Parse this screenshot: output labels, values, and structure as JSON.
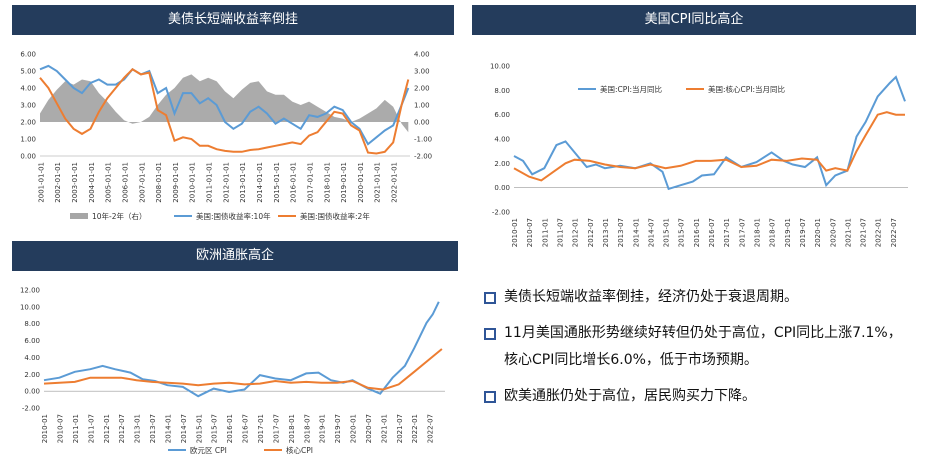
{
  "panels": {
    "treasury": {
      "title": "美债长短端收益率倒挂"
    },
    "us_cpi": {
      "title": "美国CPI同比高企"
    },
    "eu_cpi": {
      "title": "欧洲通胀高企"
    }
  },
  "bullets": [
    "美债长短端收益率倒挂，经济仍处于衰退周期。",
    "11月美国通胀形势继续好转但仍处于高位，CPI同比上涨7.1%，核心CPI同比增长6.0%，低于市场预期。",
    "欧美通胀仍处于高位，居民购买力下降。"
  ],
  "chart_data": [
    {
      "type": "line",
      "id": "treasury",
      "x_ticks": [
        "2001-01-01",
        "2002-01-01",
        "2003-01-01",
        "2004-01-01",
        "2005-01-01",
        "2006-01-01",
        "2007-01-01",
        "2008-01-01",
        "2009-01-01",
        "2010-01-01",
        "2011-01-01",
        "2012-01-01",
        "2013-01-01",
        "2014-01-01",
        "2015-01-01",
        "2016-01-01",
        "2017-01-01",
        "2018-01-01",
        "2019-01-01",
        "2020-01-01",
        "2021-01-01",
        "2022-01-01"
      ],
      "y_left_ticks": [
        "0.00",
        "1.00",
        "2.00",
        "3.00",
        "4.00",
        "5.00",
        "6.00"
      ],
      "y_right_ticks": [
        "-2.00",
        "-1.00",
        "0.00",
        "1.00",
        "2.00",
        "3.00",
        "4.00"
      ],
      "ylim_left": [
        0,
        6
      ],
      "ylim_right": [
        -2,
        4
      ],
      "x_range": [
        2001.0,
        2023.0
      ],
      "series": [
        {
          "name": "10年-2年（右）",
          "type": "area",
          "axis": "right",
          "color": "#a6a6a6",
          "x": [
            2001.0,
            2001.5,
            2002.0,
            2002.5,
            2003.0,
            2003.5,
            2004.0,
            2004.5,
            2005.0,
            2005.5,
            2006.0,
            2006.5,
            2007.0,
            2007.5,
            2008.0,
            2008.5,
            2009.0,
            2009.5,
            2010.0,
            2010.5,
            2011.0,
            2011.5,
            2012.0,
            2012.5,
            2013.0,
            2013.5,
            2014.0,
            2014.5,
            2015.0,
            2015.5,
            2016.0,
            2016.5,
            2017.0,
            2017.5,
            2018.0,
            2018.5,
            2019.0,
            2019.5,
            2020.0,
            2020.5,
            2021.0,
            2021.5,
            2022.0,
            2022.5,
            2022.9
          ],
          "values": [
            0.5,
            1.3,
            1.9,
            2.4,
            2.2,
            2.5,
            2.4,
            1.7,
            1.2,
            0.6,
            0.1,
            -0.1,
            0.0,
            0.3,
            1.0,
            1.6,
            2.0,
            2.6,
            2.8,
            2.4,
            2.6,
            2.4,
            1.8,
            1.4,
            1.9,
            2.3,
            2.4,
            1.8,
            1.6,
            1.6,
            1.2,
            1.0,
            1.2,
            0.9,
            0.6,
            0.3,
            0.2,
            0.0,
            0.2,
            0.5,
            0.8,
            1.3,
            0.9,
            -0.1,
            -0.6
          ]
        },
        {
          "name": "美国:国债收益率:10年",
          "type": "line",
          "axis": "left",
          "color": "#5b9bd5",
          "x": [
            2001.0,
            2001.5,
            2002.0,
            2002.5,
            2003.0,
            2003.5,
            2004.0,
            2004.5,
            2005.0,
            2005.5,
            2006.0,
            2006.5,
            2007.0,
            2007.5,
            2008.0,
            2008.5,
            2009.0,
            2009.5,
            2010.0,
            2010.5,
            2011.0,
            2011.5,
            2012.0,
            2012.5,
            2013.0,
            2013.5,
            2014.0,
            2014.5,
            2015.0,
            2015.5,
            2016.0,
            2016.5,
            2017.0,
            2017.5,
            2018.0,
            2018.5,
            2019.0,
            2019.5,
            2020.0,
            2020.5,
            2021.0,
            2021.5,
            2022.0,
            2022.5,
            2022.9
          ],
          "values": [
            5.1,
            5.3,
            5.0,
            4.5,
            4.0,
            3.7,
            4.3,
            4.5,
            4.2,
            4.2,
            4.5,
            5.1,
            4.8,
            5.0,
            3.7,
            4.0,
            2.5,
            3.7,
            3.7,
            3.1,
            3.4,
            3.0,
            2.0,
            1.6,
            1.9,
            2.6,
            2.9,
            2.5,
            1.9,
            2.2,
            1.9,
            1.6,
            2.4,
            2.3,
            2.5,
            2.9,
            2.7,
            2.0,
            1.6,
            0.7,
            1.1,
            1.5,
            1.8,
            3.0,
            4.0
          ]
        },
        {
          "name": "美国:国债收益率:2年",
          "type": "line",
          "axis": "left",
          "color": "#ed7d31",
          "x": [
            2001.0,
            2001.5,
            2002.0,
            2002.5,
            2003.0,
            2003.5,
            2004.0,
            2004.5,
            2005.0,
            2005.5,
            2006.0,
            2006.5,
            2007.0,
            2007.5,
            2008.0,
            2008.5,
            2009.0,
            2009.5,
            2010.0,
            2010.5,
            2011.0,
            2011.5,
            2012.0,
            2012.5,
            2013.0,
            2013.5,
            2014.0,
            2014.5,
            2015.0,
            2015.5,
            2016.0,
            2016.5,
            2017.0,
            2017.5,
            2018.0,
            2018.5,
            2019.0,
            2019.5,
            2020.0,
            2020.5,
            2021.0,
            2021.5,
            2022.0,
            2022.5,
            2022.9
          ],
          "values": [
            4.6,
            4.0,
            3.1,
            2.2,
            1.6,
            1.3,
            1.6,
            2.6,
            3.4,
            4.0,
            4.6,
            5.1,
            4.8,
            4.9,
            2.7,
            2.4,
            0.9,
            1.1,
            1.0,
            0.6,
            0.6,
            0.4,
            0.3,
            0.25,
            0.25,
            0.35,
            0.4,
            0.5,
            0.6,
            0.7,
            0.8,
            0.7,
            1.2,
            1.4,
            2.0,
            2.6,
            2.5,
            1.8,
            1.5,
            0.2,
            0.15,
            0.25,
            0.8,
            3.0,
            4.5
          ]
        }
      ]
    },
    {
      "type": "line",
      "id": "us_cpi",
      "x_ticks": [
        "2010-01",
        "2010-07",
        "2011-01",
        "2011-07",
        "2012-01",
        "2012-07",
        "2013-01",
        "2013-07",
        "2014-01",
        "2014-07",
        "2015-01",
        "2015-07",
        "2016-01",
        "2016-07",
        "2017-01",
        "2017-07",
        "2018-01",
        "2018-07",
        "2019-01",
        "2019-07",
        "2020-01",
        "2020-07",
        "2021-01",
        "2021-07",
        "2022-01",
        "2022-07"
      ],
      "y_ticks": [
        "-2.00",
        "0.00",
        "2.00",
        "4.00",
        "6.00",
        "8.00",
        "10.00"
      ],
      "ylim": [
        -2,
        10
      ],
      "x_range": [
        2010.0,
        2023.0
      ],
      "series": [
        {
          "name": "美国:CPI:当月同比",
          "color": "#5b9bd5",
          "x": [
            2010.0,
            2010.3,
            2010.6,
            2011.0,
            2011.4,
            2011.7,
            2012.0,
            2012.4,
            2012.7,
            2013.0,
            2013.5,
            2014.0,
            2014.5,
            2014.9,
            2015.1,
            2015.5,
            2015.9,
            2016.2,
            2016.6,
            2017.0,
            2017.5,
            2018.0,
            2018.5,
            2018.9,
            2019.2,
            2019.6,
            2020.0,
            2020.3,
            2020.6,
            2021.0,
            2021.3,
            2021.6,
            2022.0,
            2022.4,
            2022.6,
            2022.9
          ],
          "values": [
            2.6,
            2.2,
            1.1,
            1.6,
            3.5,
            3.8,
            2.9,
            1.7,
            1.9,
            1.6,
            1.8,
            1.6,
            2.0,
            1.3,
            -0.1,
            0.2,
            0.5,
            1.0,
            1.1,
            2.5,
            1.7,
            2.1,
            2.9,
            2.2,
            1.9,
            1.7,
            2.5,
            0.2,
            1.0,
            1.4,
            4.2,
            5.4,
            7.5,
            8.6,
            9.1,
            7.1
          ]
        },
        {
          "name": "美国:核心CPI:当月同比",
          "color": "#ed7d31",
          "x": [
            2010.0,
            2010.5,
            2010.9,
            2011.3,
            2011.7,
            2012.0,
            2012.5,
            2013.0,
            2013.5,
            2014.0,
            2014.5,
            2015.0,
            2015.5,
            2016.0,
            2016.5,
            2017.0,
            2017.5,
            2018.0,
            2018.5,
            2019.0,
            2019.5,
            2020.0,
            2020.3,
            2020.6,
            2021.0,
            2021.3,
            2021.6,
            2022.0,
            2022.3,
            2022.6,
            2022.9
          ],
          "values": [
            1.6,
            0.9,
            0.6,
            1.3,
            2.0,
            2.3,
            2.2,
            1.9,
            1.7,
            1.6,
            1.9,
            1.6,
            1.8,
            2.2,
            2.2,
            2.3,
            1.7,
            1.8,
            2.3,
            2.2,
            2.4,
            2.3,
            1.4,
            1.6,
            1.4,
            3.0,
            4.3,
            6.0,
            6.2,
            6.0,
            6.0
          ]
        }
      ]
    },
    {
      "type": "line",
      "id": "eu_cpi",
      "x_ticks": [
        "2010-01",
        "2010-07",
        "2011-01",
        "2011-07",
        "2012-01",
        "2012-07",
        "2013-01",
        "2013-07",
        "2014-01",
        "2014-07",
        "2015-01",
        "2015-07",
        "2016-01",
        "2016-07",
        "2017-01",
        "2017-07",
        "2018-01",
        "2018-07",
        "2019-01",
        "2019-07",
        "2020-01",
        "2020-07",
        "2021-01",
        "2021-07",
        "2022-01",
        "2022-07"
      ],
      "y_ticks": [
        "-2.00",
        "0.00",
        "2.00",
        "4.00",
        "6.00",
        "8.00",
        "10.00",
        "12.00"
      ],
      "ylim": [
        -2,
        12
      ],
      "x_range": [
        2010.0,
        2023.0
      ],
      "series": [
        {
          "name": "欧元区 CPI",
          "color": "#5b9bd5",
          "x": [
            2010.0,
            2010.5,
            2011.0,
            2011.5,
            2011.9,
            2012.3,
            2012.8,
            2013.2,
            2013.6,
            2014.0,
            2014.5,
            2015.0,
            2015.5,
            2016.0,
            2016.5,
            2017.0,
            2017.5,
            2018.0,
            2018.5,
            2018.9,
            2019.3,
            2019.7,
            2020.0,
            2020.5,
            2020.9,
            2021.3,
            2021.7,
            2022.0,
            2022.4,
            2022.6,
            2022.8
          ],
          "values": [
            1.3,
            1.6,
            2.3,
            2.6,
            3.0,
            2.6,
            2.2,
            1.4,
            1.2,
            0.7,
            0.5,
            -0.6,
            0.3,
            -0.1,
            0.2,
            1.9,
            1.5,
            1.3,
            2.1,
            2.2,
            1.3,
            1.0,
            1.3,
            0.3,
            -0.3,
            1.6,
            3.0,
            5.1,
            8.1,
            9.1,
            10.6
          ]
        },
        {
          "name": "核心CPI",
          "color": "#ed7d31",
          "x": [
            2010.0,
            2010.5,
            2011.0,
            2011.5,
            2012.0,
            2012.5,
            2013.0,
            2013.5,
            2014.0,
            2014.5,
            2015.0,
            2015.5,
            2016.0,
            2016.5,
            2017.0,
            2017.5,
            2018.0,
            2018.5,
            2019.0,
            2019.5,
            2020.0,
            2020.5,
            2021.0,
            2021.5,
            2022.0,
            2022.5,
            2022.9
          ],
          "values": [
            0.9,
            1.0,
            1.1,
            1.6,
            1.6,
            1.6,
            1.3,
            1.1,
            1.0,
            0.9,
            0.7,
            0.9,
            1.0,
            0.8,
            0.9,
            1.2,
            1.0,
            1.1,
            1.0,
            1.0,
            1.2,
            0.4,
            0.2,
            0.8,
            2.3,
            3.8,
            5.0
          ]
        }
      ]
    }
  ]
}
